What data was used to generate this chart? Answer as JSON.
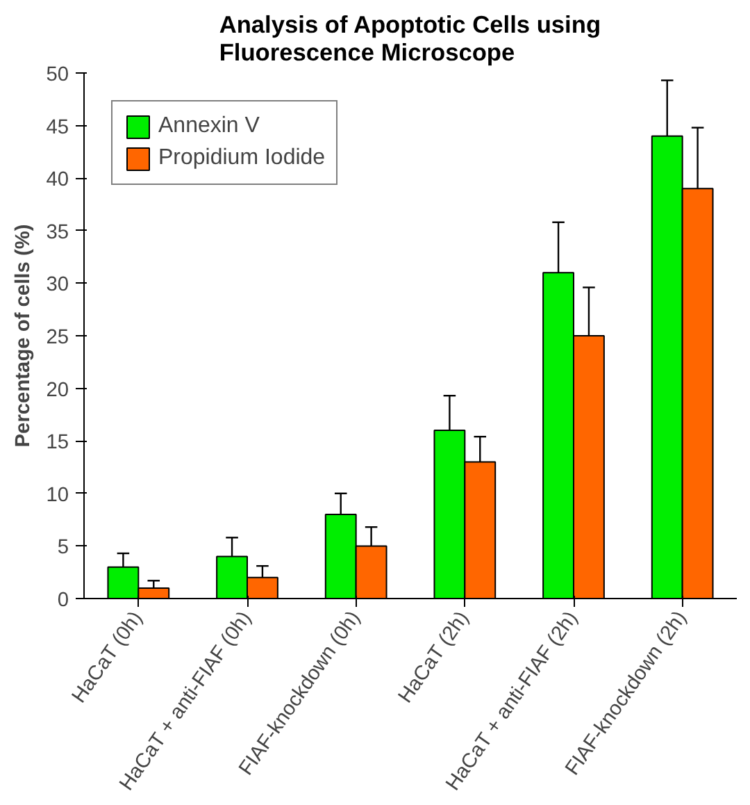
{
  "chart_data": {
    "type": "bar",
    "title": "Analysis of Apoptotic Cells using\nFluorescence Microscope",
    "ylabel": "Percentage of cells (%)",
    "categories": [
      "HaCaT (0h)",
      "HaCaT + anti-FIAF (0h)",
      "FIAF-knockdown (0h)",
      "HaCaT (2h)",
      "HaCaT + anti-FIAF (2h)",
      "FIAF-knockdown (2h)"
    ],
    "series": [
      {
        "name": "Annexin V",
        "color": "#00ee00",
        "values": [
          3,
          4,
          8,
          16,
          31,
          44
        ],
        "errors": [
          [
            3,
            4.3
          ],
          [
            4,
            5.8
          ],
          [
            8,
            10
          ],
          [
            16,
            19.3
          ],
          [
            31,
            35.8
          ],
          [
            44,
            49.3
          ]
        ]
      },
      {
        "name": "Propidium Iodide",
        "color": "#ff6600",
        "values": [
          1,
          2,
          5,
          13,
          25,
          39
        ],
        "errors": [
          [
            1,
            1.7
          ],
          [
            2,
            3.1
          ],
          [
            5,
            6.8
          ],
          [
            13,
            15.4
          ],
          [
            25,
            29.6
          ],
          [
            39,
            44.8
          ]
        ]
      }
    ],
    "ylim": [
      0,
      50
    ],
    "yticks": [
      0,
      5,
      10,
      15,
      20,
      25,
      30,
      35,
      40,
      45,
      50
    ],
    "grid": false,
    "legend": "top left"
  }
}
